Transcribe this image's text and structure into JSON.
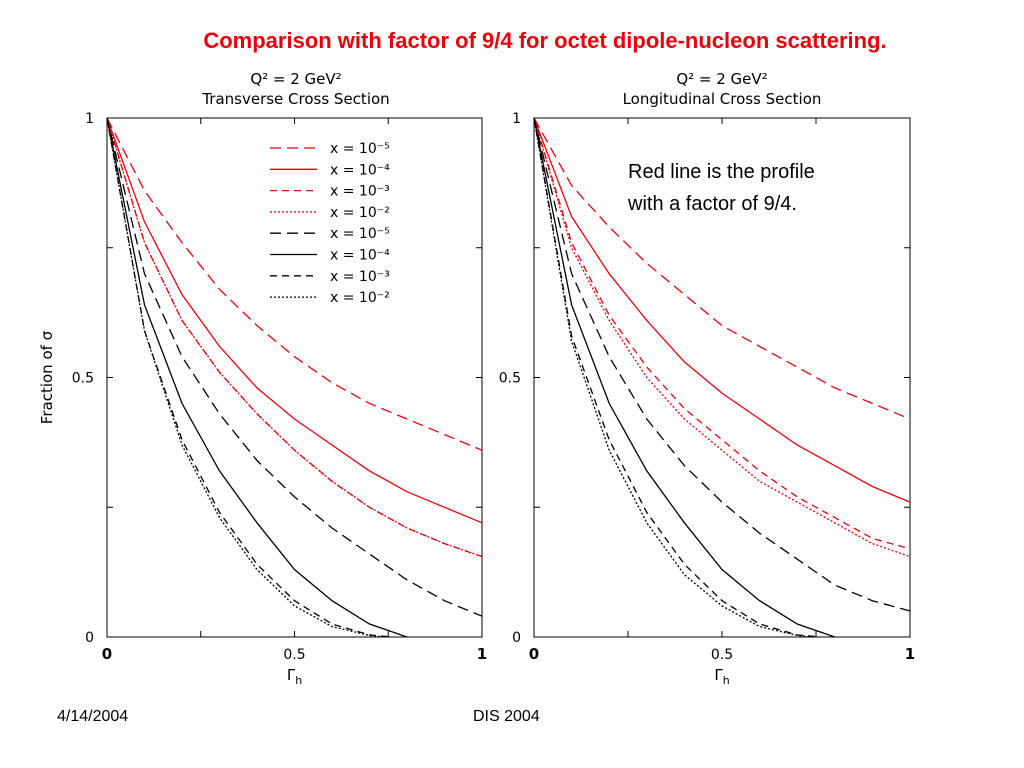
{
  "slide": {
    "title": "Comparison with factor of 9/4 for octet dipole-nucleon scattering.",
    "footer_left": "4/14/2004",
    "footer_center": "DIS 2004"
  },
  "colors": {
    "red": "#e8000b",
    "black": "#000000"
  },
  "chart_data": [
    {
      "type": "line",
      "title_line1": "Q² = 2 GeV²",
      "title_line2": "Transverse Cross Section",
      "xlabel": "Γh",
      "ylabel": "Fraction of σ",
      "xlim": [
        0,
        1
      ],
      "ylim": [
        0,
        1
      ],
      "x_tick_labels": [
        "0",
        "0.5",
        "1"
      ],
      "y_tick_labels": [
        "0",
        "0.5",
        "1"
      ],
      "legend_position": "top-right",
      "annotation": "",
      "series": [
        {
          "name": "x = 10⁻⁵",
          "color": "red",
          "dash": "long",
          "x": [
            0,
            0.1,
            0.2,
            0.3,
            0.4,
            0.5,
            0.6,
            0.7,
            0.8,
            0.9,
            1.0
          ],
          "y": [
            1.0,
            0.86,
            0.76,
            0.67,
            0.6,
            0.54,
            0.49,
            0.45,
            0.42,
            0.39,
            0.36
          ]
        },
        {
          "name": "x = 10⁻⁴",
          "color": "red",
          "dash": "solid",
          "x": [
            0,
            0.1,
            0.2,
            0.3,
            0.4,
            0.5,
            0.6,
            0.7,
            0.8,
            0.9,
            1.0
          ],
          "y": [
            1.0,
            0.8,
            0.66,
            0.56,
            0.48,
            0.42,
            0.37,
            0.32,
            0.28,
            0.25,
            0.22
          ]
        },
        {
          "name": "x = 10⁻³",
          "color": "red",
          "dash": "medium",
          "x": [
            0,
            0.1,
            0.2,
            0.3,
            0.4,
            0.5,
            0.6,
            0.7,
            0.8,
            0.9,
            1.0
          ],
          "y": [
            1.0,
            0.76,
            0.61,
            0.51,
            0.43,
            0.36,
            0.3,
            0.25,
            0.21,
            0.18,
            0.155
          ]
        },
        {
          "name": "x = 10⁻²",
          "color": "red",
          "dash": "dotted",
          "x": [
            0,
            0.1,
            0.2,
            0.3,
            0.4,
            0.5,
            0.6,
            0.7,
            0.8,
            0.9,
            1.0
          ],
          "y": [
            1.0,
            0.76,
            0.61,
            0.51,
            0.43,
            0.36,
            0.3,
            0.25,
            0.21,
            0.18,
            0.155
          ]
        },
        {
          "name": "x = 10⁻⁵",
          "color": "black",
          "dash": "long",
          "x": [
            0,
            0.1,
            0.2,
            0.3,
            0.4,
            0.5,
            0.6,
            0.7,
            0.8,
            0.9,
            1.0
          ],
          "y": [
            1.0,
            0.7,
            0.54,
            0.43,
            0.34,
            0.27,
            0.21,
            0.16,
            0.11,
            0.07,
            0.04
          ]
        },
        {
          "name": "x = 10⁻⁴",
          "color": "black",
          "dash": "solid",
          "x": [
            0,
            0.1,
            0.2,
            0.3,
            0.4,
            0.5,
            0.6,
            0.7,
            0.8
          ],
          "y": [
            1.0,
            0.64,
            0.45,
            0.32,
            0.22,
            0.13,
            0.07,
            0.025,
            0.0
          ]
        },
        {
          "name": "x = 10⁻³",
          "color": "black",
          "dash": "medium",
          "x": [
            0,
            0.1,
            0.2,
            0.3,
            0.4,
            0.5,
            0.6,
            0.7,
            0.76
          ],
          "y": [
            1.0,
            0.59,
            0.38,
            0.24,
            0.14,
            0.07,
            0.025,
            0.004,
            0.0
          ]
        },
        {
          "name": "x = 10⁻²",
          "color": "black",
          "dash": "dotted",
          "x": [
            0,
            0.1,
            0.2,
            0.3,
            0.4,
            0.5,
            0.6,
            0.7,
            0.74
          ],
          "y": [
            1.0,
            0.59,
            0.37,
            0.23,
            0.13,
            0.06,
            0.02,
            0.003,
            0.0
          ]
        }
      ]
    },
    {
      "type": "line",
      "title_line1": "Q² = 2 GeV²",
      "title_line2": "Longitudinal Cross Section",
      "xlabel": "Γh",
      "ylabel": "",
      "xlim": [
        0,
        1
      ],
      "ylim": [
        0,
        1
      ],
      "x_tick_labels": [
        "0",
        "0.5",
        "1"
      ],
      "y_tick_labels": [
        "0",
        "0.5",
        "1"
      ],
      "legend_position": "",
      "annotation": "Red line is the profile with a factor of 9/4.",
      "series": [
        {
          "name": "x = 10⁻⁵",
          "color": "red",
          "dash": "long",
          "x": [
            0,
            0.1,
            0.2,
            0.3,
            0.4,
            0.5,
            0.6,
            0.7,
            0.8,
            0.9,
            1.0
          ],
          "y": [
            1.0,
            0.87,
            0.79,
            0.72,
            0.66,
            0.6,
            0.56,
            0.52,
            0.48,
            0.45,
            0.42
          ]
        },
        {
          "name": "x = 10⁻⁴",
          "color": "red",
          "dash": "solid",
          "x": [
            0,
            0.1,
            0.2,
            0.3,
            0.4,
            0.5,
            0.6,
            0.7,
            0.8,
            0.9,
            1.0
          ],
          "y": [
            1.0,
            0.81,
            0.7,
            0.61,
            0.53,
            0.47,
            0.42,
            0.37,
            0.33,
            0.29,
            0.26
          ]
        },
        {
          "name": "x = 10⁻³",
          "color": "red",
          "dash": "medium",
          "x": [
            0,
            0.1,
            0.2,
            0.3,
            0.4,
            0.5,
            0.6,
            0.7,
            0.8,
            0.9,
            1.0
          ],
          "y": [
            1.0,
            0.76,
            0.62,
            0.52,
            0.44,
            0.38,
            0.32,
            0.27,
            0.23,
            0.19,
            0.17
          ]
        },
        {
          "name": "x = 10⁻²",
          "color": "red",
          "dash": "dotted",
          "x": [
            0,
            0.1,
            0.2,
            0.3,
            0.4,
            0.5,
            0.6,
            0.7,
            0.8,
            0.9,
            1.0
          ],
          "y": [
            1.0,
            0.75,
            0.61,
            0.5,
            0.42,
            0.36,
            0.3,
            0.26,
            0.22,
            0.18,
            0.155
          ]
        },
        {
          "name": "x = 10⁻⁵",
          "color": "black",
          "dash": "long",
          "x": [
            0,
            0.1,
            0.2,
            0.3,
            0.4,
            0.5,
            0.6,
            0.7,
            0.8,
            0.9,
            1.0
          ],
          "y": [
            1.0,
            0.7,
            0.54,
            0.42,
            0.33,
            0.26,
            0.2,
            0.15,
            0.1,
            0.07,
            0.05
          ]
        },
        {
          "name": "x = 10⁻⁴",
          "color": "black",
          "dash": "solid",
          "x": [
            0,
            0.1,
            0.2,
            0.3,
            0.4,
            0.5,
            0.6,
            0.7,
            0.8
          ],
          "y": [
            1.0,
            0.64,
            0.45,
            0.32,
            0.22,
            0.13,
            0.07,
            0.025,
            0.0
          ]
        },
        {
          "name": "x = 10⁻³",
          "color": "black",
          "dash": "medium",
          "x": [
            0,
            0.1,
            0.2,
            0.3,
            0.4,
            0.5,
            0.6,
            0.7,
            0.76
          ],
          "y": [
            1.0,
            0.58,
            0.38,
            0.24,
            0.14,
            0.07,
            0.025,
            0.004,
            0.0
          ]
        },
        {
          "name": "x = 10⁻²",
          "color": "black",
          "dash": "dotted",
          "x": [
            0,
            0.1,
            0.2,
            0.3,
            0.4,
            0.5,
            0.6,
            0.7,
            0.74
          ],
          "y": [
            1.0,
            0.57,
            0.36,
            0.22,
            0.12,
            0.06,
            0.02,
            0.003,
            0.0
          ]
        }
      ]
    }
  ]
}
